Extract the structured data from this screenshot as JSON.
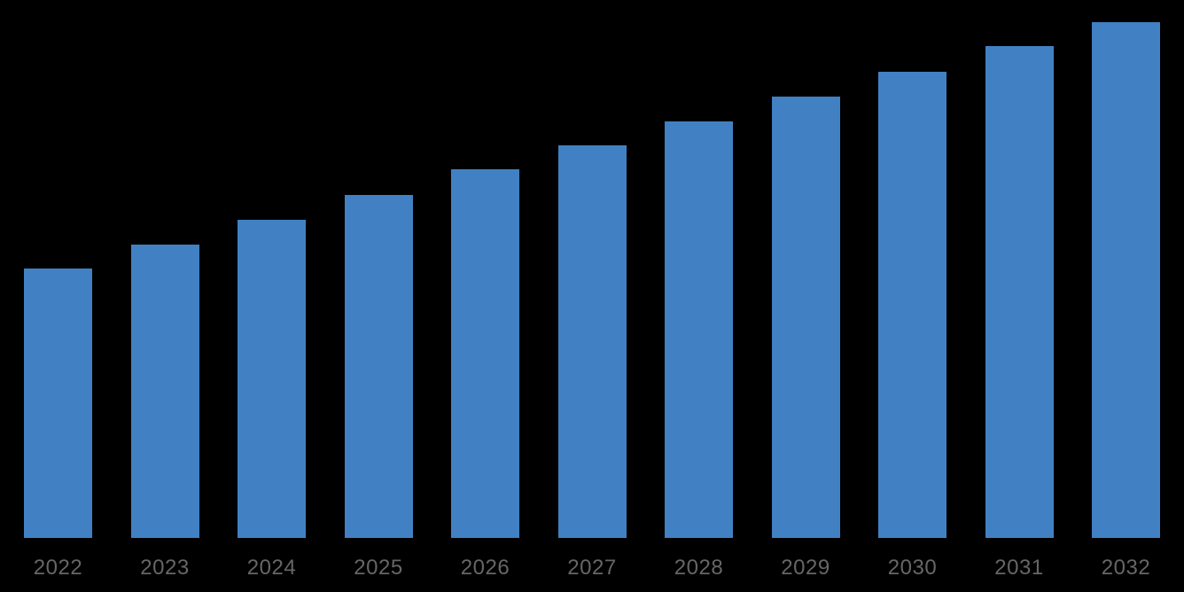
{
  "chart_data": {
    "type": "bar",
    "title": "",
    "xlabel": "",
    "ylabel": "",
    "categories": [
      "2022",
      "2023",
      "2024",
      "2025",
      "2026",
      "2027",
      "2028",
      "2029",
      "2030",
      "2031",
      "2032"
    ],
    "values": [
      304,
      331,
      359,
      387,
      416,
      443,
      470,
      498,
      526,
      555,
      582
    ],
    "value_unit": "relative-bar-height-px (no y-axis or value labels shown in image)",
    "y_axis_visible": false,
    "x_axis_line_visible": false,
    "grid": false,
    "legend": "none",
    "bar_color": "#4181C3",
    "tick_label_color": "#666666",
    "background_color": "#000000"
  }
}
